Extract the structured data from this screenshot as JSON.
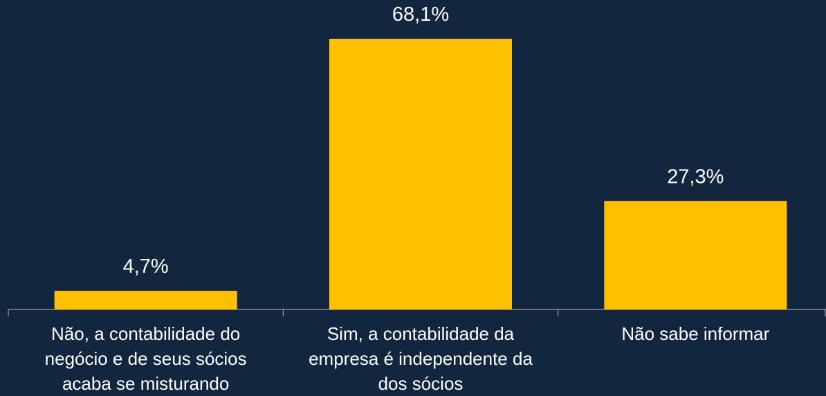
{
  "chart_data": {
    "type": "bar",
    "categories": [
      "Não, a contabilidade do negócio e de seus sócios acaba se misturando",
      "Sim, a contabilidade da empresa é independente da dos sócios",
      "Não sabe informar"
    ],
    "values": [
      4.7,
      68.1,
      27.3
    ],
    "value_labels": [
      "4,7%",
      "68,1%",
      "27,3%"
    ],
    "color": "#ffc000"
  }
}
